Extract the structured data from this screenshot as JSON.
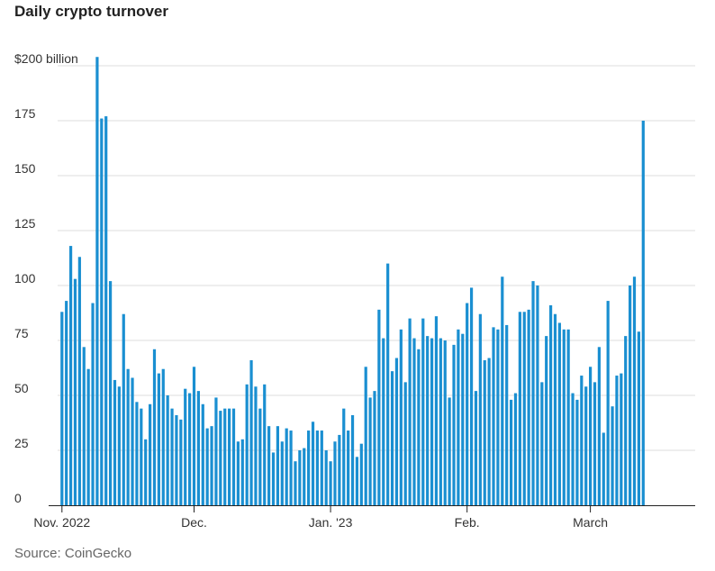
{
  "chart_data": {
    "type": "bar",
    "title": "Daily crypto turnover",
    "source": "Source: CoinGecko",
    "y_unit": "billion",
    "ylim": [
      0,
      200
    ],
    "y_ticks": [
      {
        "value": 0,
        "label": "0"
      },
      {
        "value": 25,
        "label": "25"
      },
      {
        "value": 50,
        "label": "50"
      },
      {
        "value": 75,
        "label": "75"
      },
      {
        "value": 100,
        "label": "100"
      },
      {
        "value": 125,
        "label": "125"
      },
      {
        "value": 150,
        "label": "150"
      },
      {
        "value": 175,
        "label": "175"
      },
      {
        "value": 200,
        "label": "$200 billion"
      }
    ],
    "x_ticks": [
      {
        "date": "2022-11-01",
        "label": "Nov. 2022"
      },
      {
        "date": "2022-12-01",
        "label": "Dec."
      },
      {
        "date": "2023-01-01",
        "label": "Jan. '23"
      },
      {
        "date": "2023-02-01",
        "label": "Feb."
      },
      {
        "date": "2023-03-01",
        "label": "March"
      }
    ],
    "grid": "horizontal",
    "color": "#1a8fd1",
    "first_date": "2022-11-01",
    "values": [
      88,
      93,
      118,
      103,
      113,
      72,
      62,
      92,
      204,
      176,
      177,
      102,
      57,
      54,
      87,
      62,
      58,
      47,
      44,
      30,
      46,
      71,
      60,
      62,
      50,
      44,
      41,
      39,
      53,
      51,
      63,
      52,
      46,
      35,
      36,
      49,
      43,
      44,
      44,
      44,
      29,
      30,
      55,
      66,
      54,
      44,
      55,
      36,
      24,
      36,
      29,
      35,
      34,
      20,
      25,
      26,
      34,
      38,
      34,
      34,
      25,
      20,
      29,
      32,
      44,
      34,
      41,
      22,
      28,
      63,
      49,
      52,
      89,
      76,
      110,
      61,
      67,
      80,
      56,
      85,
      76,
      71,
      85,
      77,
      76,
      86,
      76,
      75,
      49,
      73,
      80,
      78,
      92,
      99,
      52,
      87,
      66,
      67,
      81,
      80,
      104,
      82,
      48,
      51,
      88,
      88,
      89,
      102,
      100,
      56,
      77,
      91,
      87,
      83,
      80,
      80,
      51,
      48,
      59,
      54,
      63,
      56,
      72,
      33,
      93,
      45,
      59,
      60,
      77,
      100,
      104,
      79,
      175
    ]
  }
}
